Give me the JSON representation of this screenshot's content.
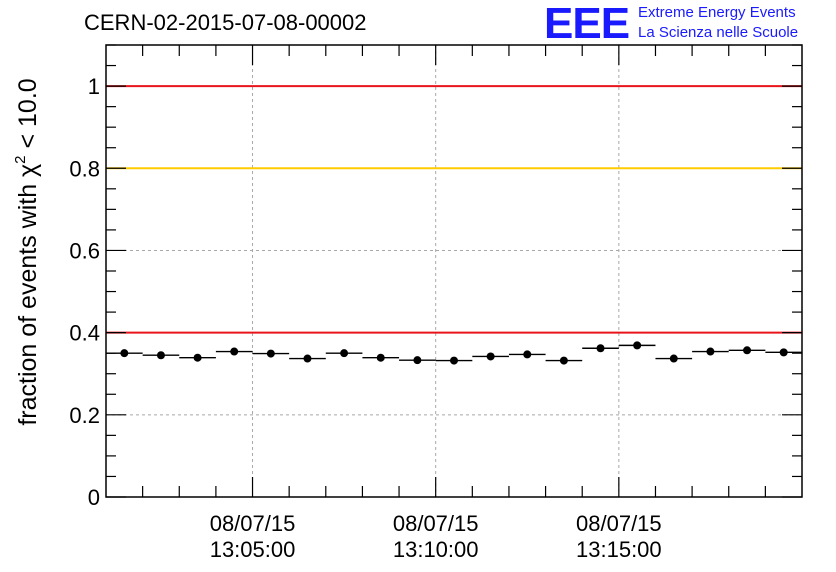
{
  "page": {
    "title": "CERN-02-2015-07-08-00002"
  },
  "logo": {
    "mark": "EEE",
    "line1": "Extreme Energy Events",
    "line2": "La Scienza nelle Scuole",
    "color": "#1a1aff"
  },
  "chart_data": {
    "type": "scatter",
    "title": "CERN-02-2015-07-08-00002",
    "ylabel_main": "fraction of events with χ",
    "ylabel_sup": "2",
    "ylabel_tail": " < 10.0",
    "xlabel": "",
    "xlim": [
      0,
      19
    ],
    "ylim": [
      0,
      1.1
    ],
    "yticks": [
      {
        "value": 0,
        "label": "0"
      },
      {
        "value": 0.2,
        "label": "0.2"
      },
      {
        "value": 0.4,
        "label": "0.4"
      },
      {
        "value": 0.6,
        "label": "0.6"
      },
      {
        "value": 0.8,
        "label": "0.8"
      },
      {
        "value": 1.0,
        "label": "1"
      }
    ],
    "xticks": [
      {
        "value": 4,
        "date": "08/07/15",
        "time": "13:05:00"
      },
      {
        "value": 9,
        "date": "08/07/15",
        "time": "13:10:00"
      },
      {
        "value": 14,
        "date": "08/07/15",
        "time": "13:15:00"
      }
    ],
    "grid": true,
    "reference_lines": [
      {
        "y": 1.0,
        "color": "#e8141a"
      },
      {
        "y": 0.8,
        "color": "#ffcc00"
      },
      {
        "y": 0.4,
        "color": "#e8141a"
      }
    ],
    "series": [
      {
        "marker_color": "#000000",
        "x": [
          0.5,
          1.5,
          2.5,
          3.5,
          4.5,
          5.5,
          6.5,
          7.5,
          8.5,
          9.5,
          10.5,
          11.5,
          12.5,
          13.5,
          14.5,
          15.5,
          16.5,
          17.5,
          18.5
        ],
        "y": [
          0.35,
          0.345,
          0.339,
          0.354,
          0.349,
          0.337,
          0.35,
          0.339,
          0.333,
          0.332,
          0.342,
          0.347,
          0.332,
          0.362,
          0.369,
          0.337,
          0.354,
          0.357,
          0.352
        ],
        "x_halfwidth": 0.5
      }
    ]
  }
}
